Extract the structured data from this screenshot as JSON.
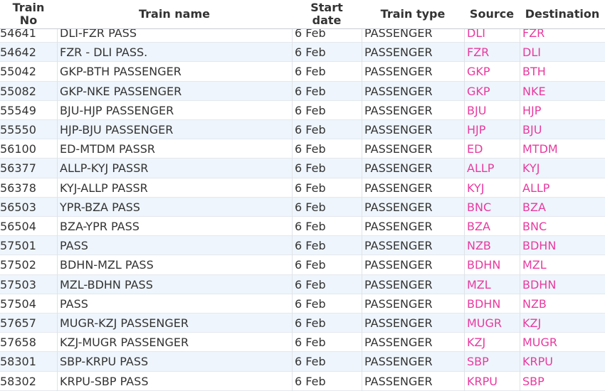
{
  "table": {
    "header": [
      "Train No",
      "Train name",
      "Start date",
      "Train type",
      "Source",
      "Destination"
    ],
    "rows": [
      [
        "54641",
        "DLI-FZR PASS",
        "6 Feb",
        "PASSENGER",
        "DLI",
        "FZR"
      ],
      [
        "54642",
        "FZR - DLI PASS.",
        "6 Feb",
        "PASSENGER",
        "FZR",
        "DLI"
      ],
      [
        "55042",
        "GKP-BTH PASSENGER",
        "6 Feb",
        "PASSENGER",
        "GKP",
        "BTH"
      ],
      [
        "55082",
        "GKP-NKE PASSENGER",
        "6 Feb",
        "PASSENGER",
        "GKP",
        "NKE"
      ],
      [
        "55549",
        "BJU-HJP PASSENGER",
        "6 Feb",
        "PASSENGER",
        "BJU",
        "HJP"
      ],
      [
        "55550",
        "HJP-BJU PASSENGER",
        "6 Feb",
        "PASSENGER",
        "HJP",
        "BJU"
      ],
      [
        "56100",
        "ED-MTDM PASSR",
        "6 Feb",
        "PASSENGER",
        "ED",
        "MTDM"
      ],
      [
        "56377",
        "ALLP-KYJ PASSR",
        "6 Feb",
        "PASSENGER",
        "ALLP",
        "KYJ"
      ],
      [
        "56378",
        "KYJ-ALLP PASSR",
        "6 Feb",
        "PASSENGER",
        "KYJ",
        "ALLP"
      ],
      [
        "56503",
        "YPR-BZA PASS",
        "6 Feb",
        "PASSENGER",
        "BNC",
        "BZA"
      ],
      [
        "56504",
        "BZA-YPR PASS",
        "6 Feb",
        "PASSENGER",
        "BZA",
        "BNC"
      ],
      [
        "57501",
        "PASS",
        "6 Feb",
        "PASSENGER",
        "NZB",
        "BDHN"
      ],
      [
        "57502",
        "BDHN-MZL PASS",
        "6 Feb",
        "PASSENGER",
        "BDHN",
        "MZL"
      ],
      [
        "57503",
        "MZL-BDHN PASS",
        "6 Feb",
        "PASSENGER",
        "MZL",
        "BDHN"
      ],
      [
        "57504",
        "PASS",
        "6 Feb",
        "PASSENGER",
        "BDHN",
        "NZB"
      ],
      [
        "57657",
        "MUGR-KZJ PASSENGER",
        "6 Feb",
        "PASSENGER",
        "MUGR",
        "KZJ"
      ],
      [
        "57658",
        "KZJ-MUGR PASSENGER",
        "6 Feb",
        "PASSENGER",
        "KZJ",
        "MUGR"
      ],
      [
        "58301",
        "SBP-KRPU PASS",
        "6 Feb",
        "PASSENGER",
        "SBP",
        "KRPU"
      ],
      [
        "58302",
        "KRPU-SBP PASS",
        "6 Feb",
        "PASSENGER",
        "KRPU",
        "SBP"
      ]
    ]
  }
}
